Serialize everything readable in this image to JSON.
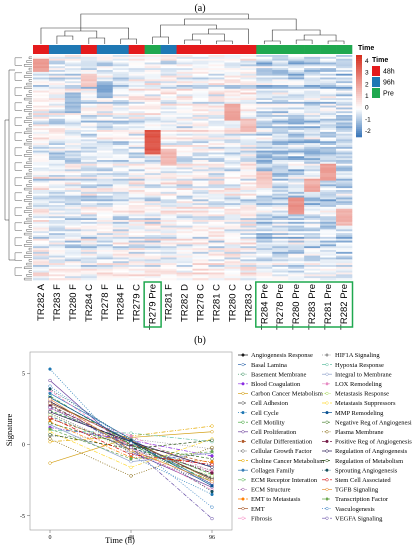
{
  "chart_data": [
    {
      "type": "heatmap",
      "panel_label": "(a)",
      "columns": [
        "TR282 A",
        "TR283 F",
        "TR280 F",
        "TR284 C",
        "TR278 F",
        "TR284 F",
        "TR279 C",
        "TR279 Pre",
        "TR281 F",
        "TR282 D",
        "TR278 C",
        "TR281 C",
        "TR280 C",
        "TR283 C",
        "TR284 Pre",
        "TR278 Pre",
        "TR280 Pre",
        "TR283 Pre",
        "TR281 Pre",
        "TR282 Pre"
      ],
      "column_time": [
        "48h",
        "96h",
        "96h",
        "48h",
        "96h",
        "96h",
        "48h",
        "Pre",
        "96h",
        "48h",
        "48h",
        "48h",
        "48h",
        "48h",
        "Pre",
        "Pre",
        "Pre",
        "Pre",
        "Pre",
        "Pre"
      ],
      "highlighted_columns": [
        "TR279 Pre",
        "TR284 Pre",
        "TR278 Pre",
        "TR280 Pre",
        "TR283 Pre",
        "TR281 Pre",
        "TR282 Pre"
      ],
      "color_scale": {
        "ticks": [
          4,
          3,
          2,
          1,
          0,
          -1,
          -2
        ],
        "min": -2.5,
        "max": 4.5,
        "low_color": "#2f6fb5",
        "mid_color": "#ffffff",
        "high_color": "#d7301f"
      },
      "time_legend": {
        "title": "Time",
        "items": [
          {
            "label": "48h",
            "color": "#e41a1c"
          },
          {
            "label": "96h",
            "color": "#1f78b4"
          },
          {
            "label": "Pre",
            "color": "#1fa84f"
          }
        ]
      },
      "annotation_title": "Time"
    },
    {
      "type": "line",
      "panel_label": "(b)",
      "xlabel": "Time (h)",
      "ylabel": "Signature",
      "x": [
        0,
        48,
        96
      ],
      "x_ticks": [
        "0",
        "48",
        "96"
      ],
      "y_ticks": [
        5,
        0,
        -5
      ],
      "ylim": [
        -6,
        6.5
      ],
      "series": [
        {
          "name": "Angiogenesis Response",
          "values": [
            3.0,
            0.2,
            -2.4
          ]
        },
        {
          "name": "Basal Lamina",
          "values": [
            2.0,
            -0.3,
            -1.5
          ]
        },
        {
          "name": "Basement Membrane",
          "values": [
            2.6,
            -0.1,
            -2.0
          ]
        },
        {
          "name": "Blood Coagulation",
          "values": [
            1.2,
            0.3,
            -0.8
          ]
        },
        {
          "name": "Carbon Cancer Metabolism",
          "values": [
            -1.3,
            0.5,
            0.9
          ]
        },
        {
          "name": "Cell Adhesion",
          "values": [
            2.8,
            -0.2,
            -2.3
          ]
        },
        {
          "name": "Cell Cycle",
          "values": [
            5.3,
            -0.8,
            -3.5
          ]
        },
        {
          "name": "Cell Motility",
          "values": [
            3.4,
            0.0,
            -2.6
          ]
        },
        {
          "name": "Cell Proliferation",
          "values": [
            4.5,
            -0.5,
            -3.0
          ]
        },
        {
          "name": "Cellular Differentiation",
          "values": [
            1.8,
            0.0,
            -1.3
          ]
        },
        {
          "name": "Cellular Growth Factor",
          "values": [
            2.2,
            -0.4,
            -1.8
          ]
        },
        {
          "name": "Choline Cancer Metabolism",
          "values": [
            0.2,
            0.6,
            1.3
          ]
        },
        {
          "name": "Collagen Family",
          "values": [
            3.6,
            0.4,
            -2.8
          ]
        },
        {
          "name": "ECM Receptor Interation",
          "values": [
            2.4,
            0.1,
            -2.1
          ]
        },
        {
          "name": "ECM Structure",
          "values": [
            3.1,
            -0.6,
            -2.7
          ]
        },
        {
          "name": "EMT to Metastasis",
          "values": [
            1.6,
            -0.9,
            -1.2
          ]
        },
        {
          "name": "EMT",
          "values": [
            2.9,
            0.3,
            -2.5
          ]
        },
        {
          "name": "Fibrosis",
          "values": [
            3.8,
            -0.2,
            -3.2
          ]
        },
        {
          "name": "HIF1A Signaling",
          "values": [
            0.6,
            0.4,
            -0.3
          ]
        },
        {
          "name": "Hypoxia Response",
          "values": [
            1.0,
            0.8,
            0.2
          ]
        },
        {
          "name": "Integral to Membrane",
          "values": [
            1.4,
            -1.2,
            -0.6
          ]
        },
        {
          "name": "LOX Remodeling",
          "values": [
            2.5,
            0.6,
            -1.9
          ]
        },
        {
          "name": "Metastasis Response",
          "values": [
            2.1,
            -0.5,
            -2.2
          ]
        },
        {
          "name": "Metastasis Suppressors",
          "values": [
            0.9,
            -1.6,
            0.4
          ]
        },
        {
          "name": "MMP Remodeling",
          "values": [
            3.3,
            0.2,
            -2.9
          ]
        },
        {
          "name": "Negative Reg of Angiogenesis",
          "values": [
            1.5,
            -0.1,
            -1.0
          ]
        },
        {
          "name": "Plasma Membrane",
          "values": [
            0.4,
            -2.2,
            -0.2
          ]
        },
        {
          "name": "Positive Reg of Angiogenesis",
          "values": [
            2.7,
            0.0,
            -2.0
          ]
        },
        {
          "name": "Regulation of Angiogenesis",
          "values": [
            2.3,
            0.2,
            -1.6
          ]
        },
        {
          "name": "Regulation of Metabolism",
          "values": [
            0.7,
            -0.3,
            0.3
          ]
        },
        {
          "name": "Sprouting Angiogenesis",
          "values": [
            3.9,
            0.3,
            -3.3
          ]
        },
        {
          "name": "Stem Cell Associated",
          "values": [
            1.9,
            -0.7,
            -1.4
          ]
        },
        {
          "name": "TGFB Signaling",
          "values": [
            3.2,
            -0.4,
            -2.6
          ]
        },
        {
          "name": "Transcription Factor",
          "values": [
            1.1,
            -1.0,
            -0.5
          ]
        },
        {
          "name": "Vasculogenesis",
          "values": [
            4.1,
            0.1,
            -4.4
          ]
        },
        {
          "name": "VEGFA Signaling",
          "values": [
            2.6,
            -0.2,
            -5.2
          ]
        }
      ],
      "legend_columns": 2
    }
  ],
  "colors": {
    "series_palette": [
      "#1b1b1b",
      "#3a6fb0",
      "#2e8b57",
      "#8a2be2",
      "#d4a017",
      "#444444",
      "#1f78b4",
      "#33a02c",
      "#6a3d9a",
      "#b15928",
      "#555555",
      "#e6ab02",
      "#377eb8",
      "#4daf4a",
      "#984ea3",
      "#ff7f00",
      "#a65628",
      "#f781bf",
      "#999999",
      "#66c2a5",
      "#8da0cb",
      "#e78ac3",
      "#a6d854",
      "#ffd92f",
      "#0b5394",
      "#38761d",
      "#7f6000",
      "#741b47",
      "#20124d",
      "#274e13",
      "#134f5c",
      "#cc0000",
      "#e69138",
      "#6aa84f",
      "#3d85c6",
      "#674ea7"
    ]
  }
}
